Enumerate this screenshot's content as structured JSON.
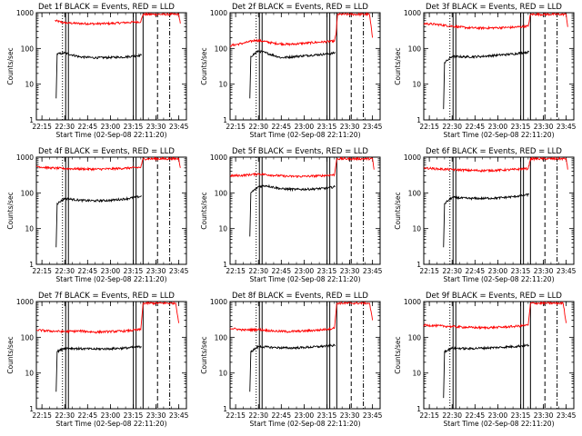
{
  "chart_data": {
    "type": "line",
    "layout": "3x3 grid of panels",
    "ylabel": "Counts/sec",
    "xlabel": "Start Time (02-Sep-08 22:11:20)",
    "y_scale": "log",
    "ylim": [
      1,
      1000
    ],
    "yticks": [
      "1",
      "10",
      "100",
      "1000"
    ],
    "xlim": [
      "22:11:20",
      "23:50:00"
    ],
    "xticks": [
      "22:15",
      "22:30",
      "22:45",
      "23:00",
      "23:15",
      "23:30",
      "23:45"
    ],
    "series_colors": {
      "events": "#000000",
      "lld": "#ff0000"
    },
    "panels": [
      {
        "title": "Det 1f BLACK = Events, RED = LLD",
        "series": [
          {
            "color": "#ff0000",
            "points": [
              [
                "22:23:30",
                600
              ],
              [
                "22:30:00",
                520
              ],
              [
                "22:40:00",
                500
              ],
              [
                "22:50:00",
                490
              ],
              [
                "23:00:00",
                500
              ],
              [
                "23:10:00",
                530
              ],
              [
                "23:20:00",
                560
              ],
              [
                "23:21:30",
                900
              ],
              [
                "23:45:00",
                900
              ],
              [
                "23:46:00",
                500
              ]
            ]
          },
          {
            "color": "#000000",
            "points": [
              [
                "22:24:20",
                4
              ],
              [
                "22:25:00",
                70
              ],
              [
                "22:30:00",
                75
              ],
              [
                "22:40:00",
                58
              ],
              [
                "22:50:00",
                55
              ],
              [
                "23:00:00",
                56
              ],
              [
                "23:10:00",
                58
              ],
              [
                "23:20:30",
                65
              ]
            ]
          }
        ]
      },
      {
        "title": "Det 2f BLACK = Events, RED = LLD",
        "series": [
          {
            "color": "#ff0000",
            "points": [
              [
                "22:11:20",
                120
              ],
              [
                "22:20:00",
                140
              ],
              [
                "22:28:00",
                170
              ],
              [
                "22:33:00",
                160
              ],
              [
                "22:40:00",
                140
              ],
              [
                "22:50:00",
                130
              ],
              [
                "23:00:00",
                140
              ],
              [
                "23:10:00",
                150
              ],
              [
                "23:20:00",
                160
              ],
              [
                "23:21:00",
                250
              ],
              [
                "23:22:00",
                900
              ],
              [
                "23:43:00",
                900
              ],
              [
                "23:45:00",
                200
              ]
            ]
          },
          {
            "color": "#000000",
            "points": [
              [
                "22:24:20",
                4
              ],
              [
                "22:25:00",
                60
              ],
              [
                "22:30:00",
                85
              ],
              [
                "22:35:00",
                75
              ],
              [
                "22:45:00",
                55
              ],
              [
                "22:55:00",
                60
              ],
              [
                "23:05:00",
                65
              ],
              [
                "23:15:00",
                70
              ],
              [
                "23:20:30",
                75
              ]
            ]
          }
        ]
      },
      {
        "title": "Det 3f BLACK = Events, RED = LLD",
        "series": [
          {
            "color": "#ff0000",
            "points": [
              [
                "22:11:20",
                500
              ],
              [
                "22:20:00",
                470
              ],
              [
                "22:30:00",
                420
              ],
              [
                "22:40:00",
                380
              ],
              [
                "22:50:00",
                370
              ],
              [
                "23:00:00",
                380
              ],
              [
                "23:10:00",
                390
              ],
              [
                "23:20:00",
                420
              ],
              [
                "23:21:30",
                900
              ],
              [
                "23:45:00",
                900
              ],
              [
                "23:46:00",
                400
              ]
            ]
          },
          {
            "color": "#000000",
            "points": [
              [
                "22:24:20",
                2
              ],
              [
                "22:25:00",
                40
              ],
              [
                "22:30:00",
                60
              ],
              [
                "22:40:00",
                58
              ],
              [
                "22:50:00",
                60
              ],
              [
                "23:00:00",
                65
              ],
              [
                "23:10:00",
                70
              ],
              [
                "23:20:30",
                80
              ]
            ]
          }
        ]
      },
      {
        "title": "Det 4f BLACK = Events, RED = LLD",
        "series": [
          {
            "color": "#ff0000",
            "points": [
              [
                "22:11:20",
                550
              ],
              [
                "22:20:00",
                500
              ],
              [
                "22:30:00",
                480
              ],
              [
                "22:40:00",
                470
              ],
              [
                "22:50:00",
                460
              ],
              [
                "23:00:00",
                470
              ],
              [
                "23:10:00",
                490
              ],
              [
                "23:20:00",
                520
              ],
              [
                "23:21:30",
                900
              ],
              [
                "23:45:00",
                900
              ],
              [
                "23:46:00",
                500
              ]
            ]
          },
          {
            "color": "#000000",
            "points": [
              [
                "22:24:20",
                3
              ],
              [
                "22:25:00",
                50
              ],
              [
                "22:30:00",
                70
              ],
              [
                "22:40:00",
                62
              ],
              [
                "22:50:00",
                60
              ],
              [
                "23:00:00",
                62
              ],
              [
                "23:10:00",
                68
              ],
              [
                "23:20:30",
                80
              ]
            ]
          }
        ]
      },
      {
        "title": "Det 5f BLACK = Events, RED = LLD",
        "series": [
          {
            "color": "#ff0000",
            "points": [
              [
                "22:11:20",
                300
              ],
              [
                "22:20:00",
                310
              ],
              [
                "22:30:00",
                340
              ],
              [
                "22:40:00",
                310
              ],
              [
                "22:50:00",
                290
              ],
              [
                "23:00:00",
                290
              ],
              [
                "23:10:00",
                300
              ],
              [
                "23:20:00",
                320
              ],
              [
                "23:21:30",
                900
              ],
              [
                "23:45:00",
                900
              ],
              [
                "23:46:00",
                450
              ]
            ]
          },
          {
            "color": "#000000",
            "points": [
              [
                "22:24:20",
                6
              ],
              [
                "22:25:00",
                100
              ],
              [
                "22:30:00",
                150
              ],
              [
                "22:35:00",
                160
              ],
              [
                "22:45:00",
                130
              ],
              [
                "22:55:00",
                125
              ],
              [
                "23:05:00",
                128
              ],
              [
                "23:15:00",
                135
              ],
              [
                "23:20:30",
                150
              ]
            ]
          }
        ]
      },
      {
        "title": "Det 6f BLACK = Events, RED = LLD",
        "series": [
          {
            "color": "#ff0000",
            "points": [
              [
                "22:11:20",
                500
              ],
              [
                "22:20:00",
                470
              ],
              [
                "22:30:00",
                450
              ],
              [
                "22:40:00",
                430
              ],
              [
                "22:50:00",
                420
              ],
              [
                "23:00:00",
                430
              ],
              [
                "23:10:00",
                450
              ],
              [
                "23:20:00",
                480
              ],
              [
                "23:21:30",
                900
              ],
              [
                "23:45:00",
                900
              ],
              [
                "23:46:00",
                450
              ]
            ]
          },
          {
            "color": "#000000",
            "points": [
              [
                "22:24:20",
                3
              ],
              [
                "22:25:00",
                50
              ],
              [
                "22:30:00",
                75
              ],
              [
                "22:40:00",
                70
              ],
              [
                "22:50:00",
                70
              ],
              [
                "23:00:00",
                72
              ],
              [
                "23:10:00",
                78
              ],
              [
                "23:20:30",
                90
              ]
            ]
          }
        ]
      },
      {
        "title": "Det 7f BLACK = Events, RED = LLD",
        "series": [
          {
            "color": "#ff0000",
            "points": [
              [
                "22:11:20",
                160
              ],
              [
                "22:20:00",
                150
              ],
              [
                "22:30:00",
                145
              ],
              [
                "22:40:00",
                150
              ],
              [
                "22:50:00",
                140
              ],
              [
                "23:00:00",
                145
              ],
              [
                "23:10:00",
                150
              ],
              [
                "23:20:00",
                165
              ],
              [
                "23:21:30",
                900
              ],
              [
                "23:43:00",
                900
              ],
              [
                "23:45:00",
                250
              ]
            ]
          },
          {
            "color": "#000000",
            "points": [
              [
                "22:24:20",
                3
              ],
              [
                "22:25:00",
                40
              ],
              [
                "22:30:00",
                50
              ],
              [
                "22:40:00",
                48
              ],
              [
                "22:50:00",
                47
              ],
              [
                "23:00:00",
                48
              ],
              [
                "23:10:00",
                50
              ],
              [
                "23:20:30",
                55
              ]
            ]
          }
        ]
      },
      {
        "title": "Det 8f BLACK = Events, RED = LLD",
        "series": [
          {
            "color": "#ff0000",
            "points": [
              [
                "22:11:20",
                180
              ],
              [
                "22:20:00",
                160
              ],
              [
                "22:30:00",
                165
              ],
              [
                "22:40:00",
                150
              ],
              [
                "22:50:00",
                145
              ],
              [
                "23:00:00",
                150
              ],
              [
                "23:10:00",
                160
              ],
              [
                "23:20:00",
                180
              ],
              [
                "23:21:30",
                900
              ],
              [
                "23:43:00",
                900
              ],
              [
                "23:45:00",
                300
              ]
            ]
          },
          {
            "color": "#000000",
            "points": [
              [
                "22:24:20",
                3
              ],
              [
                "22:25:00",
                40
              ],
              [
                "22:30:00",
                55
              ],
              [
                "22:40:00",
                52
              ],
              [
                "22:50:00",
                50
              ],
              [
                "23:00:00",
                52
              ],
              [
                "23:10:00",
                55
              ],
              [
                "23:20:30",
                60
              ]
            ]
          }
        ]
      },
      {
        "title": "Det 9f BLACK = Events, RED = LLD",
        "series": [
          {
            "color": "#ff0000",
            "points": [
              [
                "22:11:20",
                220
              ],
              [
                "22:20:00",
                210
              ],
              [
                "22:30:00",
                200
              ],
              [
                "22:40:00",
                190
              ],
              [
                "22:50:00",
                185
              ],
              [
                "23:00:00",
                190
              ],
              [
                "23:10:00",
                200
              ],
              [
                "23:20:00",
                220
              ],
              [
                "23:21:30",
                900
              ],
              [
                "23:43:00",
                900
              ],
              [
                "23:45:00",
                250
              ]
            ]
          },
          {
            "color": "#000000",
            "points": [
              [
                "22:24:20",
                2
              ],
              [
                "22:25:00",
                40
              ],
              [
                "22:30:00",
                50
              ],
              [
                "22:40:00",
                48
              ],
              [
                "22:50:00",
                50
              ],
              [
                "23:00:00",
                52
              ],
              [
                "23:10:00",
                55
              ],
              [
                "23:20:30",
                60
              ]
            ]
          }
        ]
      }
    ],
    "vertical_markers": [
      {
        "time": "22:28:30",
        "style": "dotted"
      },
      {
        "time": "22:31:30",
        "style": "solid-double"
      },
      {
        "time": "23:16:00",
        "style": "solid-double"
      },
      {
        "time": "23:21:30",
        "style": "solid"
      },
      {
        "time": "23:31:00",
        "style": "dashed"
      },
      {
        "time": "23:39:00",
        "style": "dash-dot"
      }
    ]
  }
}
